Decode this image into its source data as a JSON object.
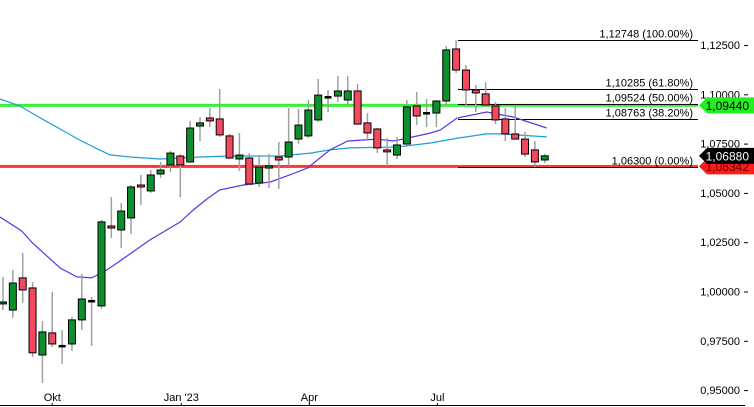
{
  "chart_data": {
    "type": "candlestick",
    "title": "",
    "xlabel": "",
    "ylabel": "",
    "ylim": [
      0.9485,
      1.1478
    ],
    "grid": false,
    "y_ticks": [
      "1,12500",
      "1,10000",
      "1,07500",
      "1,05000",
      "1,02500",
      "1,00000",
      "0,97500",
      "0,95000"
    ],
    "y_tick_values": [
      1.125,
      1.1,
      1.075,
      1.05,
      1.025,
      1.0,
      0.975,
      0.95
    ],
    "x_ticks": [
      "Okt",
      "Jan '23",
      "Apr",
      "Jul"
    ],
    "candles": [
      [
        0.9937,
        1.0074,
        0.9906,
        0.9947
      ],
      [
        0.9906,
        1.0109,
        0.9866,
        1.0043
      ],
      [
        1.0069,
        1.0195,
        0.9942,
        1.0008
      ],
      [
        1.0018,
        1.0048,
        0.9668,
        0.9689
      ],
      [
        0.9678,
        0.9851,
        0.9536,
        0.9795
      ],
      [
        0.979,
        0.9998,
        0.9719,
        0.9734
      ],
      [
        0.9724,
        0.9805,
        0.9633,
        0.9724
      ],
      [
        0.9734,
        0.9871,
        0.9699,
        0.9856
      ],
      [
        0.9856,
        1.0089,
        0.9805,
        0.9962
      ],
      [
        0.9952,
        0.9972,
        0.9724,
        0.9952
      ],
      [
        0.9927,
        1.0363,
        0.9912,
        1.0353
      ],
      [
        1.0332,
        1.0479,
        1.0271,
        1.0322
      ],
      [
        1.0312,
        1.0449,
        1.0221,
        1.0408
      ],
      [
        1.0373,
        1.054,
        1.0292,
        1.053
      ],
      [
        1.054,
        1.0591,
        1.0439,
        1.053
      ],
      [
        1.051,
        1.0616,
        1.05,
        1.0591
      ],
      [
        1.0596,
        1.0657,
        1.0576,
        1.0616
      ],
      [
        1.0642,
        1.0713,
        1.0606,
        1.0702
      ],
      [
        1.0687,
        1.0697,
        1.0479,
        1.0642
      ],
      [
        1.0657,
        1.0865,
        1.0652,
        1.0829
      ],
      [
        1.0839,
        1.0885,
        1.0763,
        1.0855
      ],
      [
        1.088,
        1.0931,
        1.0834,
        1.0865
      ],
      [
        1.0875,
        1.1027,
        1.0784,
        1.0794
      ],
      [
        1.0789,
        1.0799,
        1.0672,
        1.0677
      ],
      [
        1.0672,
        1.0804,
        1.0611,
        1.0692
      ],
      [
        1.0677,
        1.0702,
        1.054,
        1.0545
      ],
      [
        1.055,
        1.0692,
        1.053,
        1.0631
      ],
      [
        1.0626,
        1.0697,
        1.0525,
        1.0637
      ],
      [
        1.0682,
        1.0758,
        1.052,
        1.0667
      ],
      [
        1.0682,
        1.0931,
        1.0637,
        1.0758
      ],
      [
        1.0773,
        1.0926,
        1.0748,
        1.0844
      ],
      [
        1.0789,
        1.0971,
        1.0778,
        1.092
      ],
      [
        1.087,
        1.1078,
        1.086,
        1.0996
      ],
      [
        1.0986,
        1.1022,
        1.091,
        1.0986
      ],
      [
        1.0991,
        1.1093,
        1.0961,
        1.1017
      ],
      [
        1.0971,
        1.1093,
        1.0941,
        1.1017
      ],
      [
        1.1017,
        1.1052,
        1.0849,
        1.0849
      ],
      [
        1.0855,
        1.0905,
        1.0768,
        1.0804
      ],
      [
        1.0824,
        1.0829,
        1.0702,
        1.0728
      ],
      [
        1.0718,
        1.0778,
        1.0637,
        1.0708
      ],
      [
        1.0692,
        1.0784,
        1.0672,
        1.0743
      ],
      [
        1.0748,
        1.0971,
        1.0733,
        1.0936
      ],
      [
        1.0941,
        1.1012,
        1.0844,
        1.089
      ],
      [
        1.0905,
        1.0976,
        1.0834,
        1.0905
      ],
      [
        1.0905,
        1.0971,
        1.0834,
        1.0966
      ],
      [
        1.0966,
        1.1245,
        1.0946,
        1.1225
      ],
      [
        1.123,
        1.12748,
        1.1108,
        1.1123
      ],
      [
        1.1123,
        1.1149,
        1.0941,
        1.1022
      ],
      [
        1.1022,
        1.1047,
        1.091,
        1.1007
      ],
      [
        1.1002,
        1.1062,
        1.0936,
        1.0946
      ],
      [
        1.0941,
        1.0961,
        1.0849,
        1.087
      ],
      [
        1.0875,
        1.0931,
        1.0763,
        1.0799
      ],
      [
        1.0799,
        1.0946,
        1.0773,
        1.0773
      ],
      [
        1.0773,
        1.0809,
        1.0682,
        1.0697
      ],
      [
        1.0718,
        1.0763,
        1.063,
        1.0657
      ],
      [
        1.0667,
        1.0697,
        1.0652,
        1.0688
      ]
    ],
    "moving_averages": [
      {
        "color": "#1e9fd6",
        "points": [
          [
            -0.3,
            1.0976
          ],
          [
            1.7,
            1.0941
          ],
          [
            3.8,
            1.088
          ],
          [
            5.8,
            1.0824
          ],
          [
            7.8,
            1.0768
          ],
          [
            9.8,
            1.0718
          ],
          [
            10.9,
            1.0692
          ],
          [
            12.9,
            1.0682
          ],
          [
            15.9,
            1.0672
          ],
          [
            20,
            1.0682
          ],
          [
            23,
            1.0687
          ],
          [
            28.1,
            1.0687
          ],
          [
            31.2,
            1.0702
          ],
          [
            33.2,
            1.0718
          ],
          [
            35.2,
            1.0728
          ],
          [
            40,
            1.0733
          ],
          [
            43.4,
            1.0753
          ],
          [
            46.2,
            1.0778
          ],
          [
            49.1,
            1.0799
          ],
          [
            50.5,
            1.0799
          ],
          [
            55.2,
            1.0784
          ]
        ]
      },
      {
        "color": "#5a36e0",
        "points": [
          [
            -0.3,
            1.0378
          ],
          [
            1.9,
            1.0307
          ],
          [
            3,
            1.0246
          ],
          [
            5.8,
            1.0119
          ],
          [
            7.5,
            1.0074
          ],
          [
            9,
            1.0069
          ],
          [
            10.2,
            1.0099
          ],
          [
            11.6,
            1.0145
          ],
          [
            14.9,
            1.0261
          ],
          [
            18,
            1.0353
          ],
          [
            19.3,
            1.0413
          ],
          [
            20.7,
            1.0469
          ],
          [
            22,
            1.0515
          ],
          [
            24.4,
            1.054
          ],
          [
            27.1,
            1.0555
          ],
          [
            29.1,
            1.0591
          ],
          [
            30.9,
            1.0626
          ],
          [
            33.2,
            1.0718
          ],
          [
            35,
            1.0763
          ],
          [
            38,
            1.0773
          ],
          [
            39.6,
            1.0763
          ],
          [
            40.6,
            1.0773
          ],
          [
            43.4,
            1.0804
          ],
          [
            44.4,
            1.0819
          ],
          [
            46.1,
            1.088
          ],
          [
            49.1,
            1.091
          ],
          [
            51.8,
            1.0885
          ],
          [
            55.2,
            1.0829
          ]
        ]
      }
    ],
    "fib_levels": [
      {
        "price": 1.12748,
        "label": "1,12748 (100.00%)"
      },
      {
        "price": 1.10285,
        "label": "1,10285 (61.80%)"
      },
      {
        "price": 1.09524,
        "label": "1,09524 (50.00%)"
      },
      {
        "price": 1.08763,
        "label": "1,08763 (38.20%)"
      },
      {
        "price": 1.063,
        "label": "1,06300 (0.00%)"
      }
    ],
    "horizontal_lines": [
      {
        "price": 1.0944,
        "color": "#22ee22",
        "tag": "1,09440"
      },
      {
        "price": 1.06342,
        "color": "#ff2222",
        "tag": "1,06342"
      }
    ],
    "last_price": {
      "price": 1.0688,
      "tag": "1,06880",
      "color": "#000000"
    },
    "colors": {
      "up": "#0c8f2c",
      "down": "#f24a5c",
      "wick": "#a0a0a0"
    }
  }
}
